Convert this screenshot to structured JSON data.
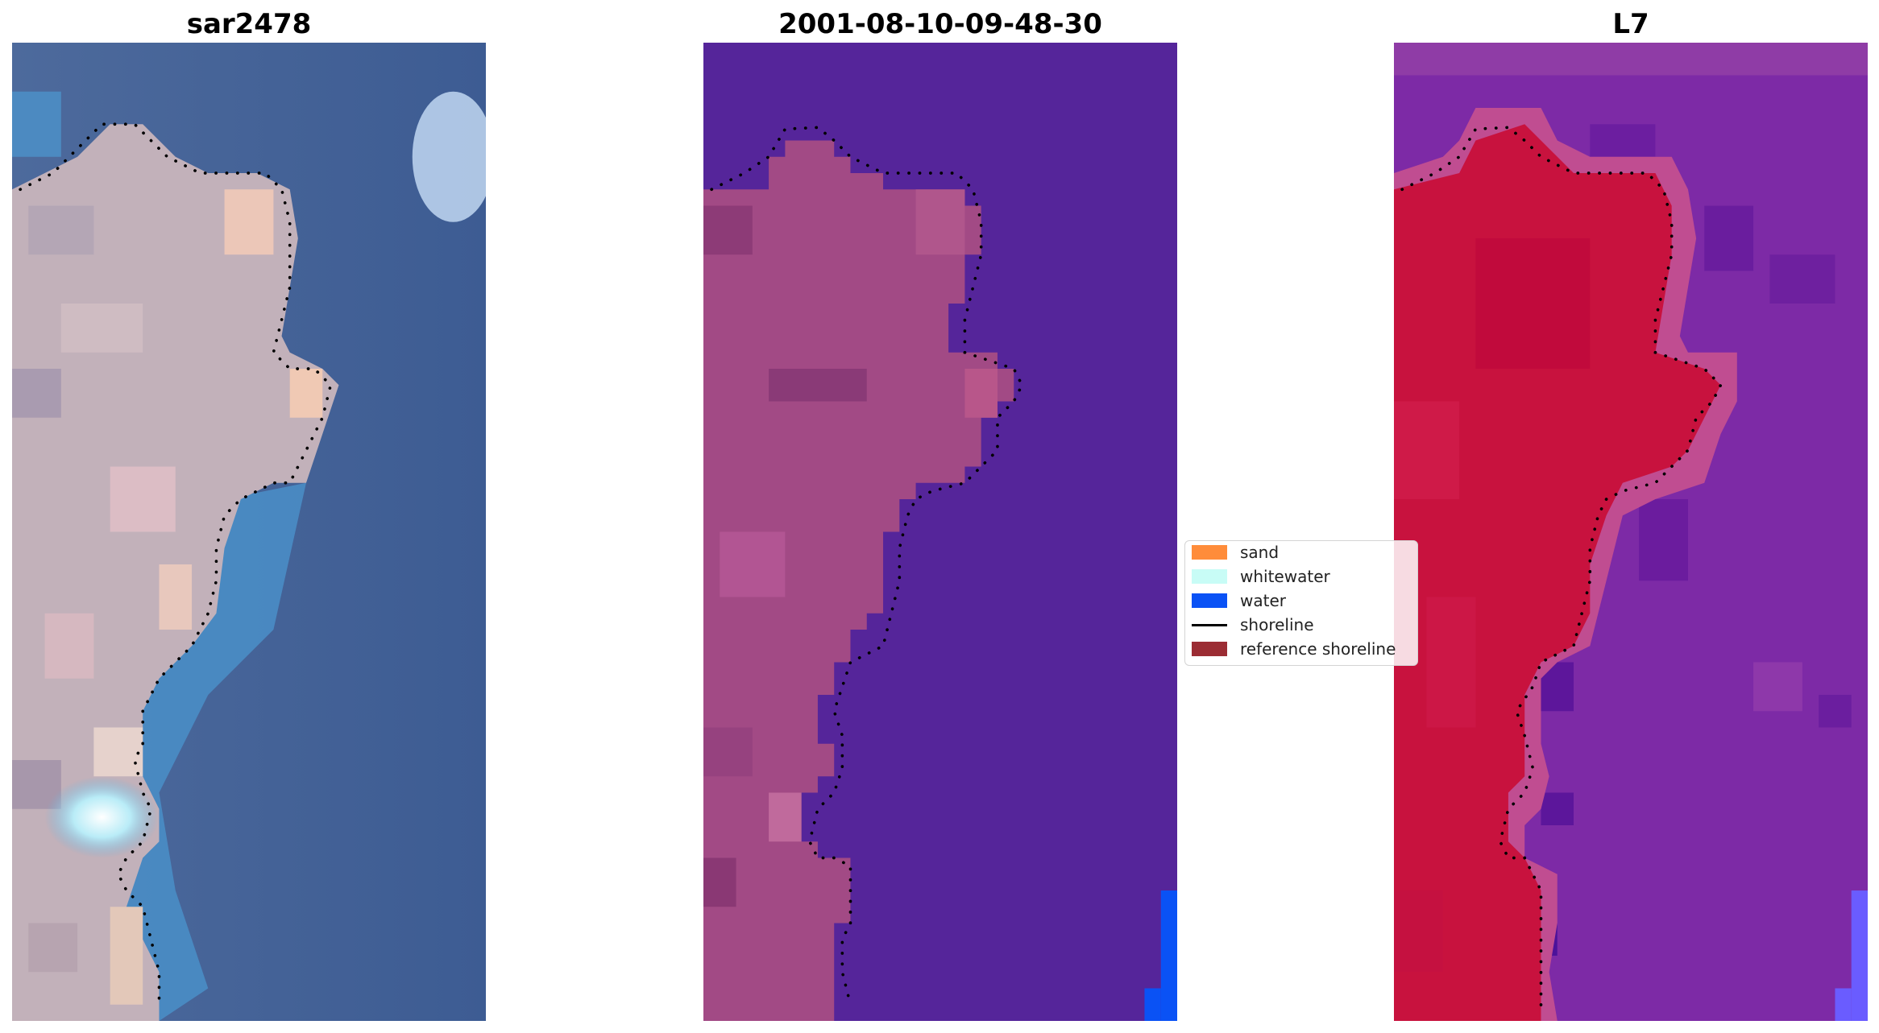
{
  "panels": [
    {
      "title": "sar2478"
    },
    {
      "title": "2001-08-10-09-48-30"
    },
    {
      "title": "L7"
    }
  ],
  "legend": {
    "items": [
      {
        "label": "sand",
        "color": "#ff8c3a",
        "kind": "patch"
      },
      {
        "label": "whitewater",
        "color": "#c8fcf6",
        "kind": "patch"
      },
      {
        "label": "water",
        "color": "#0a52f5",
        "kind": "patch"
      },
      {
        "label": "shoreline",
        "color": "#000000",
        "kind": "line"
      },
      {
        "label": "reference shoreline",
        "color": "#9b2c33",
        "kind": "patch"
      }
    ]
  },
  "colors": {
    "rgb_land": "#c6b4bd",
    "rgb_water": "#3f5f94",
    "class_land": "#a04a86",
    "class_water": "#55259a",
    "class_water_pixels": "#0a52f5",
    "mndwi_land": "#c8123e",
    "mndwi_water": "#7a2aa6",
    "mndwi_water_pixels": "#6a5cff",
    "shoreline": "#000000"
  }
}
